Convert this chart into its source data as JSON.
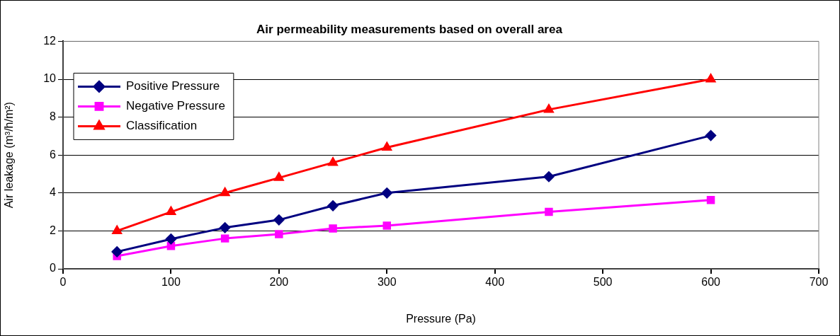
{
  "chart_data": {
    "type": "line",
    "title": "Air permeability measurements based on overall area",
    "xlabel": "Pressure (Pa)",
    "ylabel": "Air leakage (m³/h/m²)",
    "x": [
      50,
      100,
      150,
      200,
      250,
      300,
      450,
      600
    ],
    "series": [
      {
        "name": "Positive Pressure",
        "color": "#000080",
        "marker": "diamond",
        "values": [
          0.9,
          1.57,
          2.17,
          2.58,
          3.33,
          4.0,
          4.86,
          7.03
        ]
      },
      {
        "name": "Negative Pressure",
        "color": "#ff00ff",
        "marker": "square",
        "values": [
          0.67,
          1.2,
          1.6,
          1.83,
          2.13,
          2.28,
          3.0,
          3.63
        ]
      },
      {
        "name": "Classification",
        "color": "#ff0000",
        "marker": "triangle",
        "values": [
          2,
          3,
          4,
          4.8,
          5.6,
          6.4,
          8.4,
          10
        ]
      }
    ],
    "xlim": [
      0,
      700
    ],
    "xticks": [
      0,
      100,
      200,
      300,
      400,
      500,
      600,
      700
    ],
    "ylim": [
      0,
      12
    ],
    "yticks": [
      0,
      2,
      4,
      6,
      8,
      10,
      12
    ],
    "grid": "y",
    "legend": "top left",
    "line_style": "solid"
  }
}
